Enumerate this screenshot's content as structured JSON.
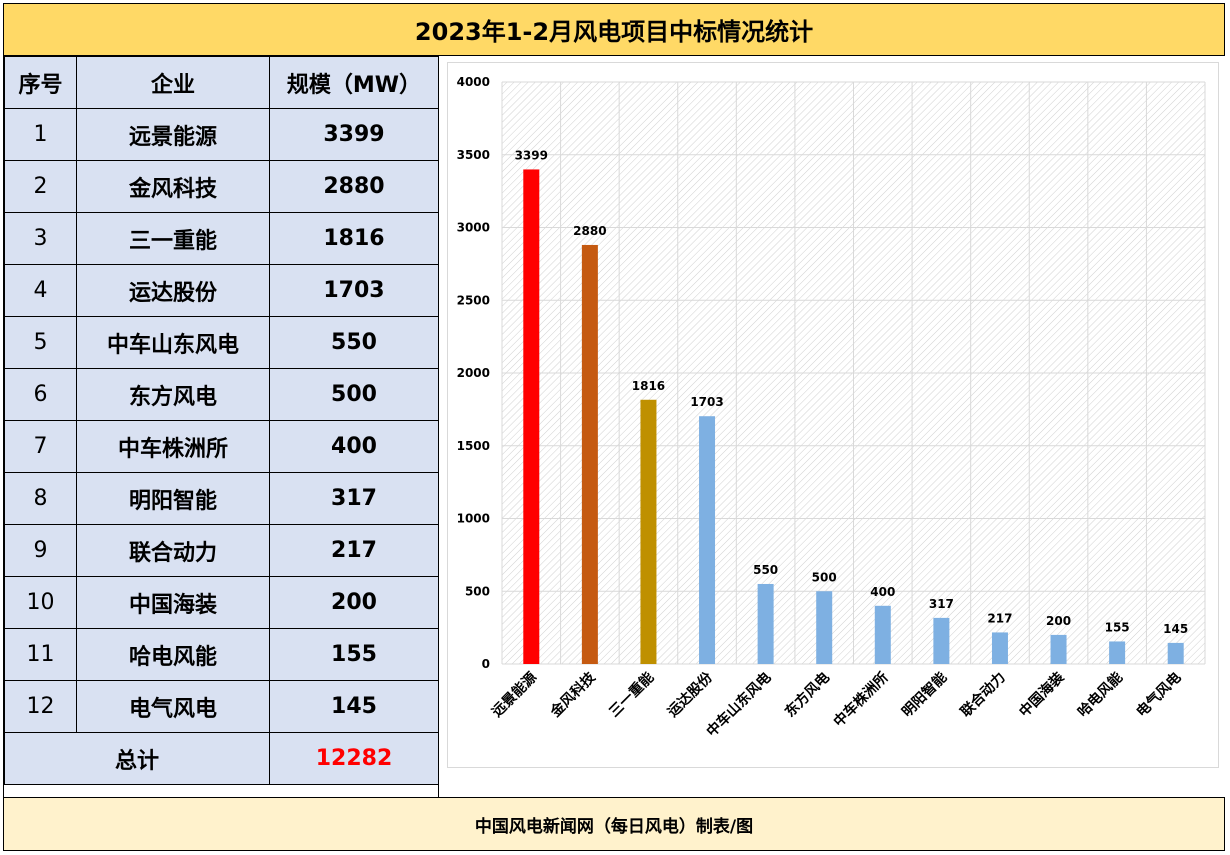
{
  "title": "2023年1-2月风电项目中标情况统计",
  "table": {
    "headers": [
      "序号",
      "企业",
      "规模（MW）"
    ],
    "rows": [
      {
        "seq": "1",
        "name": "远景能源",
        "value": "3399"
      },
      {
        "seq": "2",
        "name": "金风科技",
        "value": "2880"
      },
      {
        "seq": "3",
        "name": "三一重能",
        "value": "1816"
      },
      {
        "seq": "4",
        "name": "运达股份",
        "value": "1703"
      },
      {
        "seq": "5",
        "name": "中车山东风电",
        "value": "550"
      },
      {
        "seq": "6",
        "name": "东方风电",
        "value": "500"
      },
      {
        "seq": "7",
        "name": "中车株洲所",
        "value": "400"
      },
      {
        "seq": "8",
        "name": "明阳智能",
        "value": "317"
      },
      {
        "seq": "9",
        "name": "联合动力",
        "value": "217"
      },
      {
        "seq": "10",
        "name": "中国海装",
        "value": "200"
      },
      {
        "seq": "11",
        "name": "哈电风能",
        "value": "155"
      },
      {
        "seq": "12",
        "name": "电气风电",
        "value": "145"
      }
    ],
    "total_label": "总计",
    "total_value": "12282"
  },
  "chart_data": {
    "type": "bar",
    "categories": [
      "远景能源",
      "金风科技",
      "三一重能",
      "运达股份",
      "中车山东风电",
      "东方风电",
      "中车株洲所",
      "明阳智能",
      "联合动力",
      "中国海装",
      "哈电风能",
      "电气风电"
    ],
    "values": [
      3399,
      2880,
      1816,
      1703,
      550,
      500,
      400,
      317,
      217,
      200,
      155,
      145
    ],
    "colors": [
      "#ff0000",
      "#c55a11",
      "#bf9000",
      "#7eb0e2",
      "#7eb0e2",
      "#7eb0e2",
      "#7eb0e2",
      "#7eb0e2",
      "#7eb0e2",
      "#7eb0e2",
      "#7eb0e2",
      "#7eb0e2"
    ],
    "ylim": [
      0,
      4000
    ],
    "yticks": [
      0,
      500,
      1000,
      1500,
      2000,
      2500,
      3000,
      3500,
      4000
    ],
    "title": "",
    "xlabel": "",
    "ylabel": "",
    "grid": true,
    "legend": "none"
  },
  "footer": "中国风电新闻网（每日风电）制表/图"
}
